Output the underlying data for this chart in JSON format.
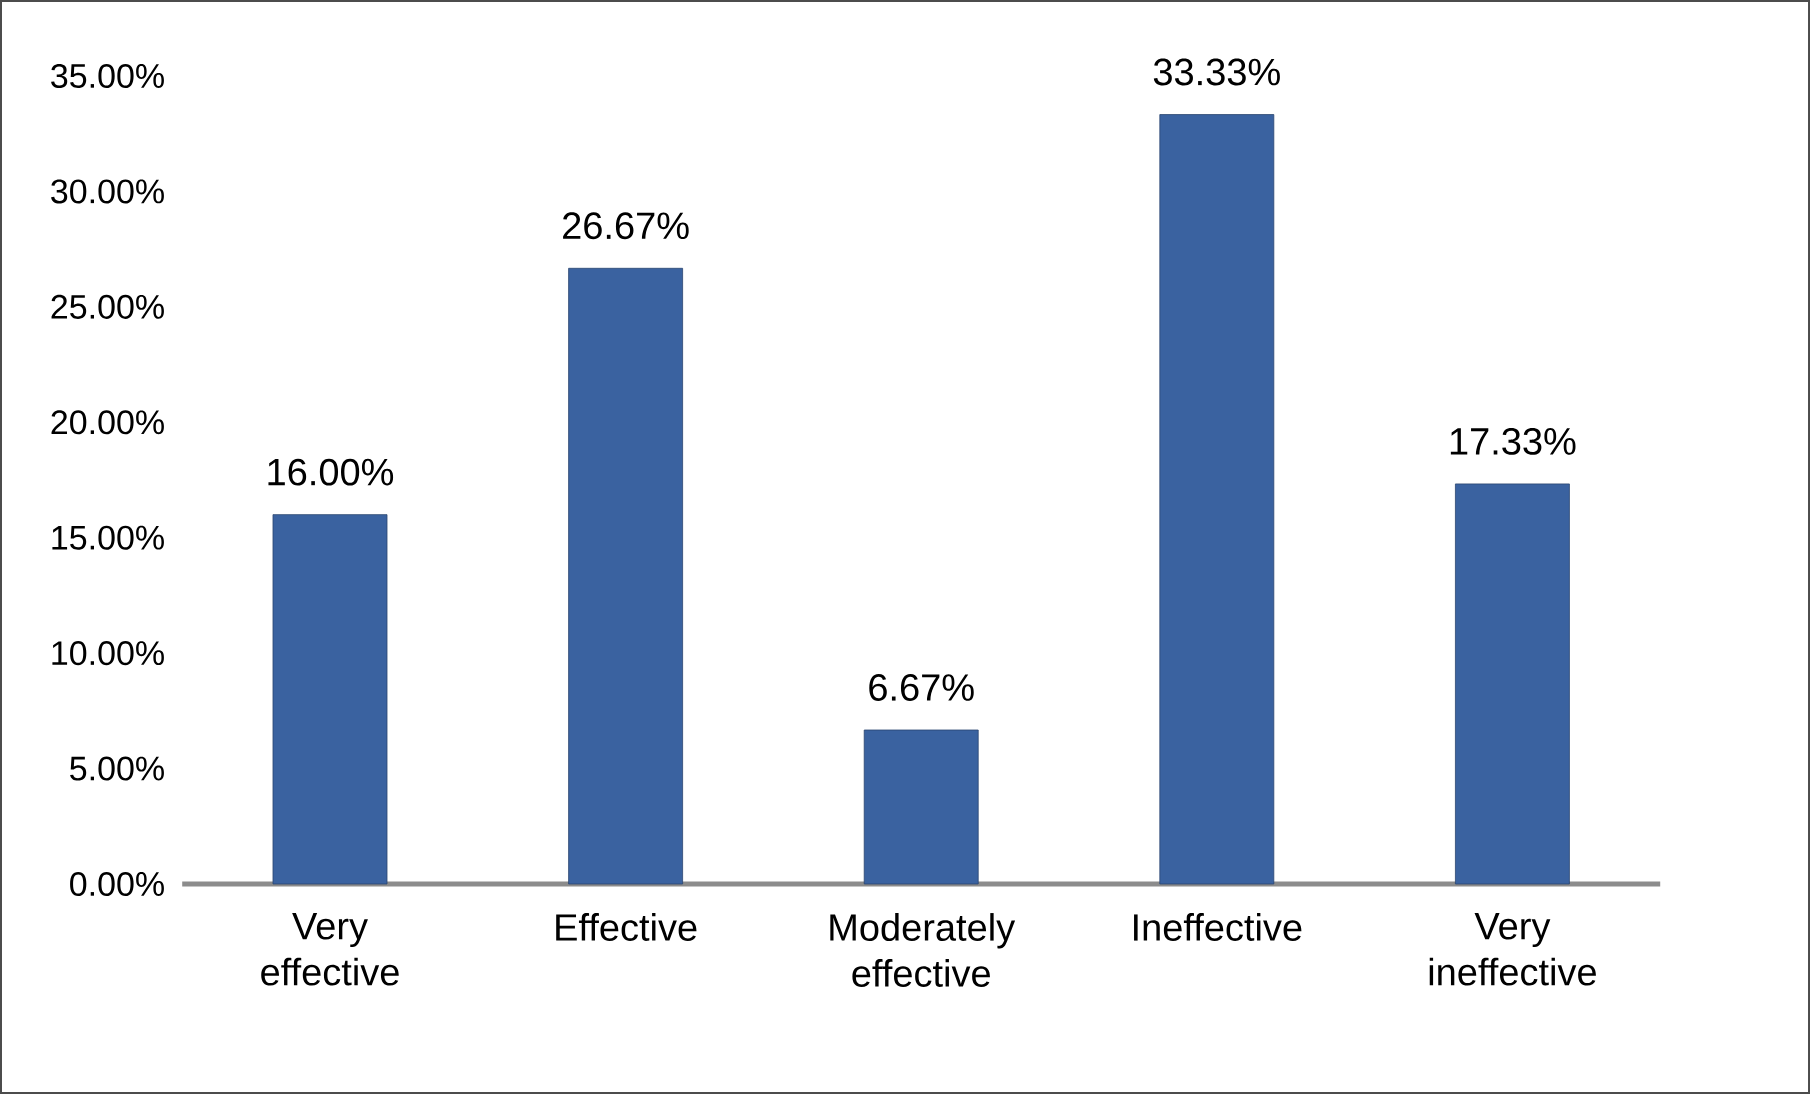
{
  "chart_data": {
    "type": "bar",
    "categories": [
      "Very effective",
      "Effective",
      "Moderately effective",
      "Ineffective",
      "Very ineffective"
    ],
    "values": [
      16.0,
      26.67,
      6.67,
      33.33,
      17.33
    ],
    "value_labels": [
      "16.00%",
      "26.67%",
      "6.67%",
      "33.33%",
      "17.33%"
    ],
    "color": "#3a62a0",
    "ylim": [
      0,
      35
    ],
    "yticks": [
      {
        "value": 0,
        "label": "0.00%"
      },
      {
        "value": 5,
        "label": "5.00%"
      },
      {
        "value": 10,
        "label": "10.00%"
      },
      {
        "value": 15,
        "label": "15.00%"
      },
      {
        "value": 20,
        "label": "20.00%"
      },
      {
        "value": 25,
        "label": "25.00%"
      },
      {
        "value": 30,
        "label": "30.00%"
      },
      {
        "value": 35,
        "label": "35.00%"
      }
    ],
    "grid": false
  }
}
